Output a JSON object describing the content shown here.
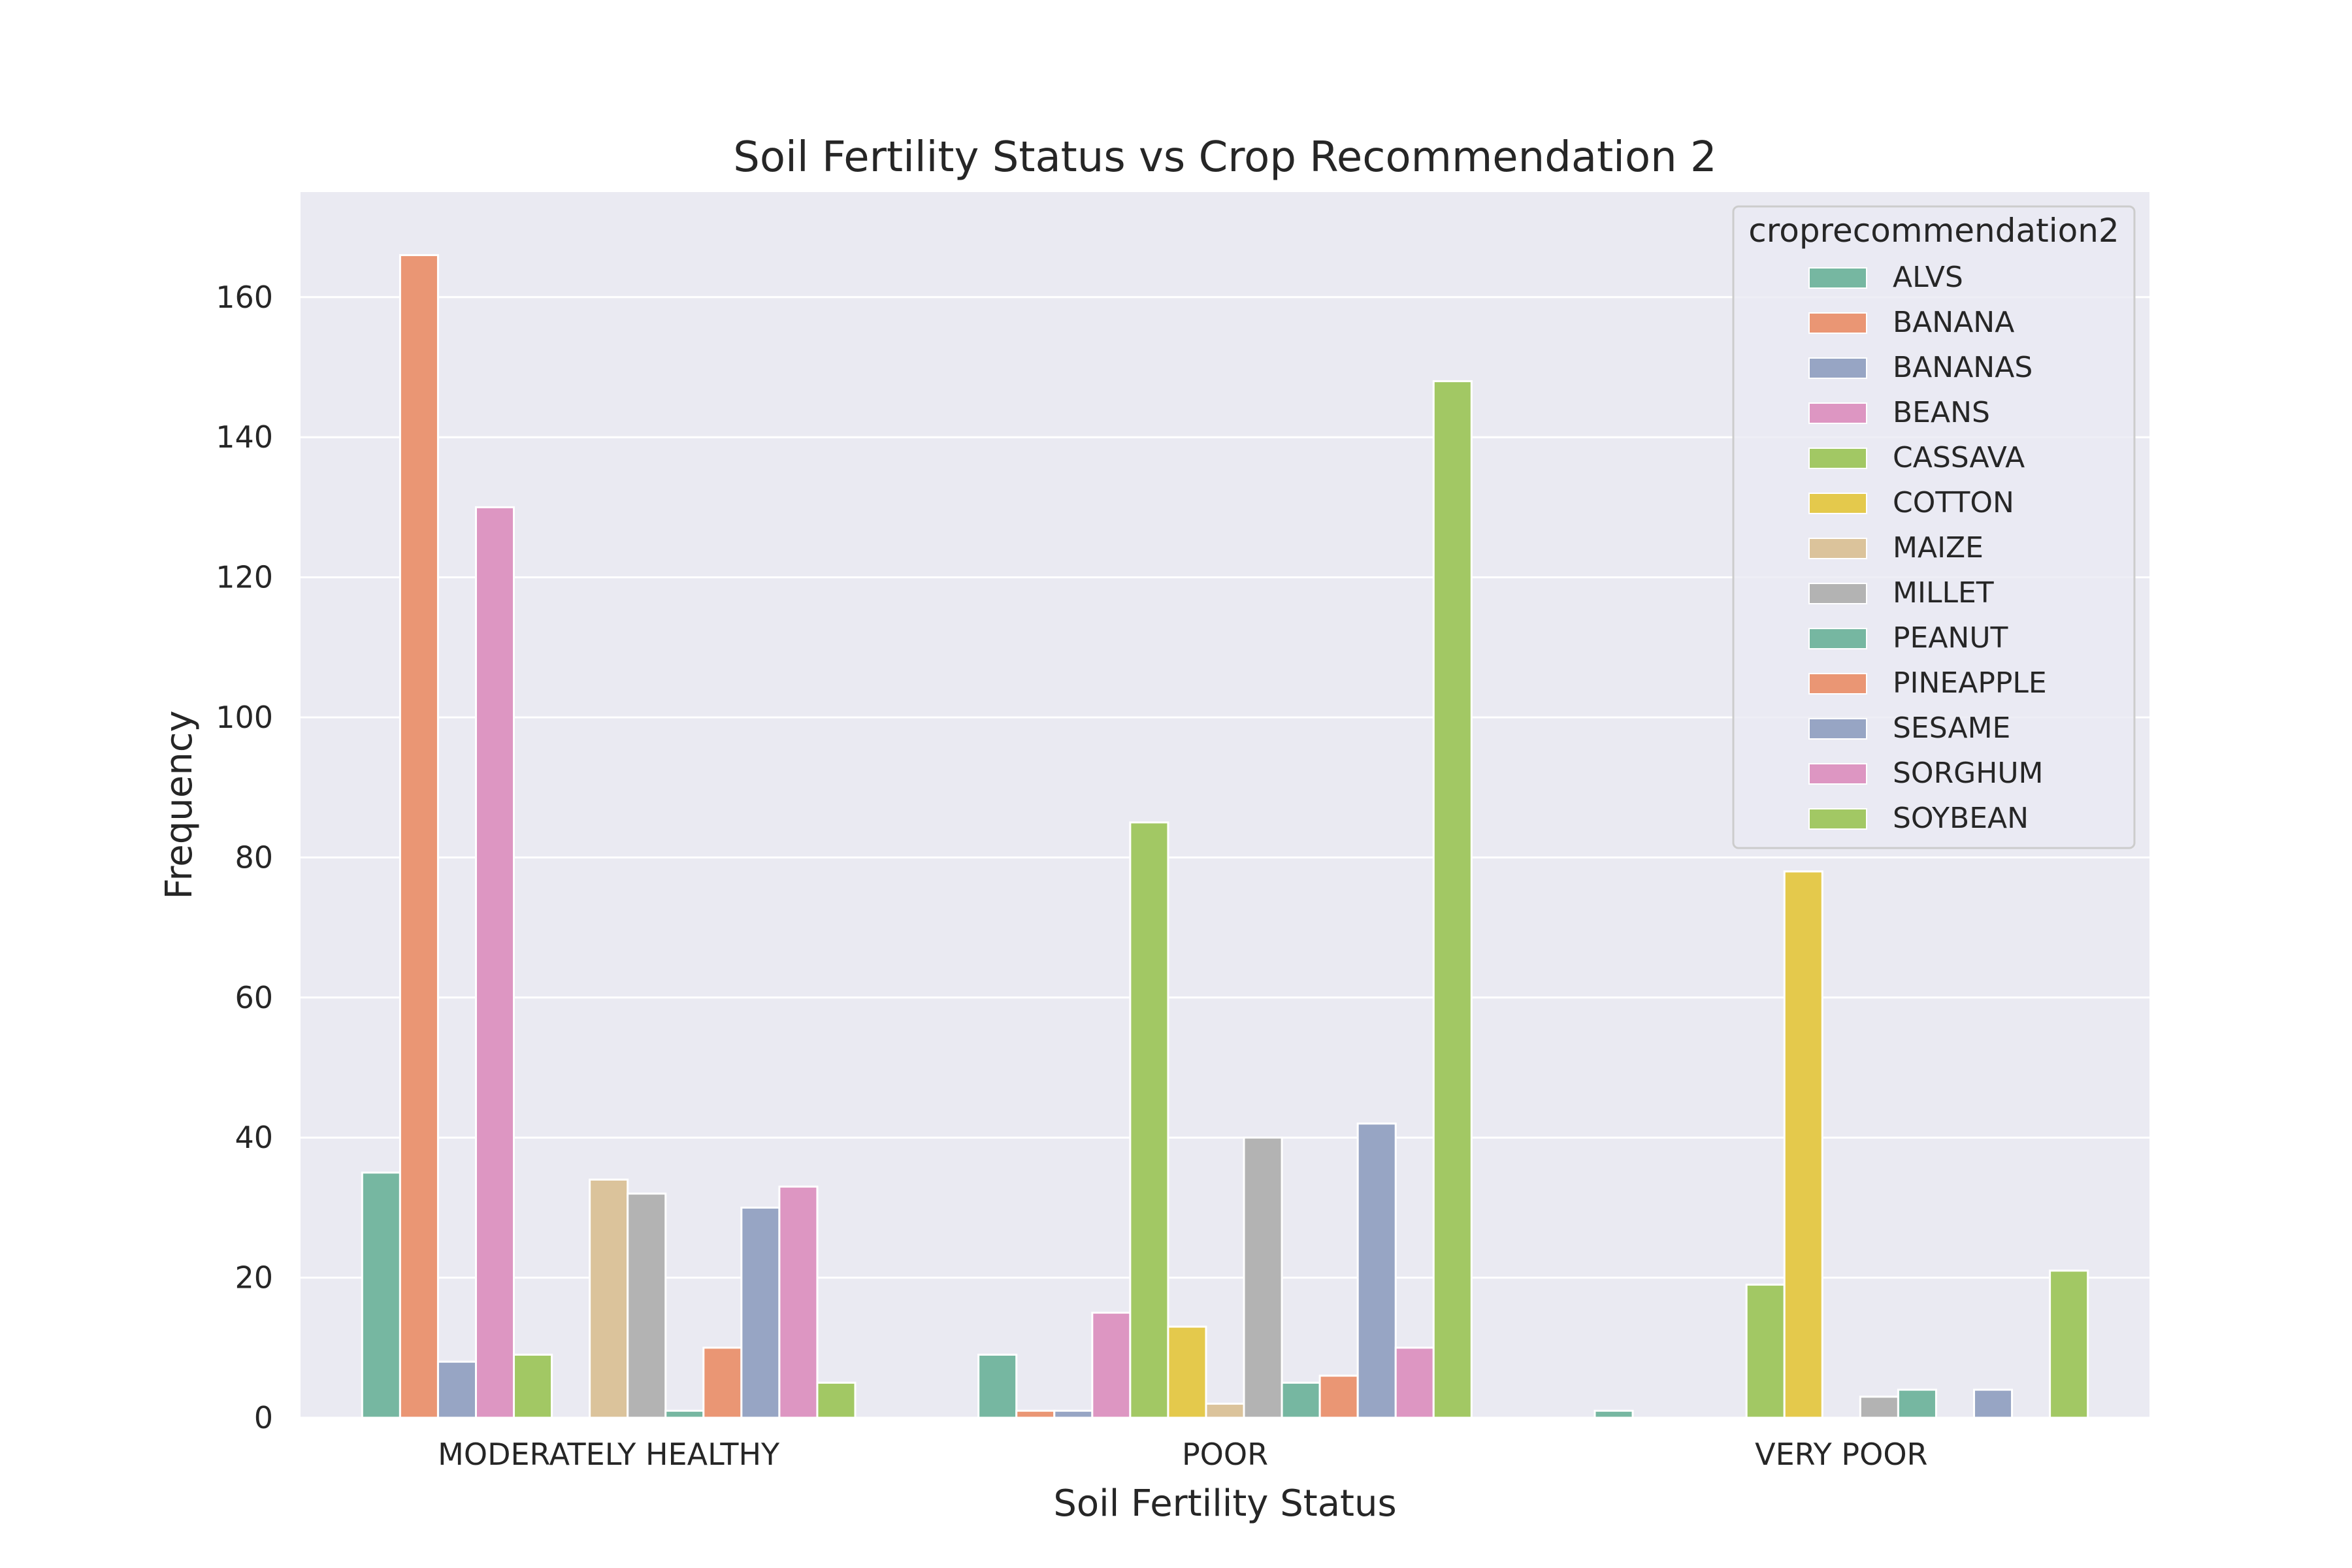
{
  "chart_data": {
    "type": "bar",
    "title": "Soil Fertility Status vs Crop Recommendation 2",
    "xlabel": "Soil Fertility Status",
    "ylabel": "Frequency",
    "ylim": [
      0,
      175
    ],
    "yticks": [
      0,
      20,
      40,
      60,
      80,
      100,
      120,
      140,
      160
    ],
    "grid": true,
    "legend_title": "croprecommendation2",
    "legend_position": "top-right",
    "categories": [
      "MODERATELY HEALTHY",
      "POOR",
      "VERY POOR"
    ],
    "series": [
      {
        "name": "ALVS",
        "color": "#76b7a1",
        "values": [
          35,
          9,
          1
        ]
      },
      {
        "name": "BANANA",
        "color": "#ea9674",
        "values": [
          166,
          1,
          0
        ]
      },
      {
        "name": "BANANAS",
        "color": "#97a5c4",
        "values": [
          8,
          1,
          0
        ]
      },
      {
        "name": "BEANS",
        "color": "#dd96c2",
        "values": [
          130,
          15,
          0
        ]
      },
      {
        "name": "CASSAVA",
        "color": "#a2c864",
        "values": [
          9,
          85,
          19
        ]
      },
      {
        "name": "COTTON",
        "color": "#e4c94c",
        "values": [
          0,
          13,
          78
        ]
      },
      {
        "name": "MAIZE",
        "color": "#dbc39b",
        "values": [
          34,
          2,
          0
        ]
      },
      {
        "name": "MILLET",
        "color": "#b3b3b3",
        "values": [
          32,
          40,
          3
        ]
      },
      {
        "name": "PEANUT",
        "color": "#76b7a1",
        "values": [
          1,
          5,
          4
        ]
      },
      {
        "name": "PINEAPPLE",
        "color": "#ea9674",
        "values": [
          10,
          6,
          0
        ]
      },
      {
        "name": "SESAME",
        "color": "#97a5c4",
        "values": [
          30,
          42,
          4
        ]
      },
      {
        "name": "SORGHUM",
        "color": "#dd96c2",
        "values": [
          33,
          10,
          0
        ]
      },
      {
        "name": "SOYBEAN",
        "color": "#a2c864",
        "values": [
          5,
          148,
          21
        ]
      }
    ]
  }
}
